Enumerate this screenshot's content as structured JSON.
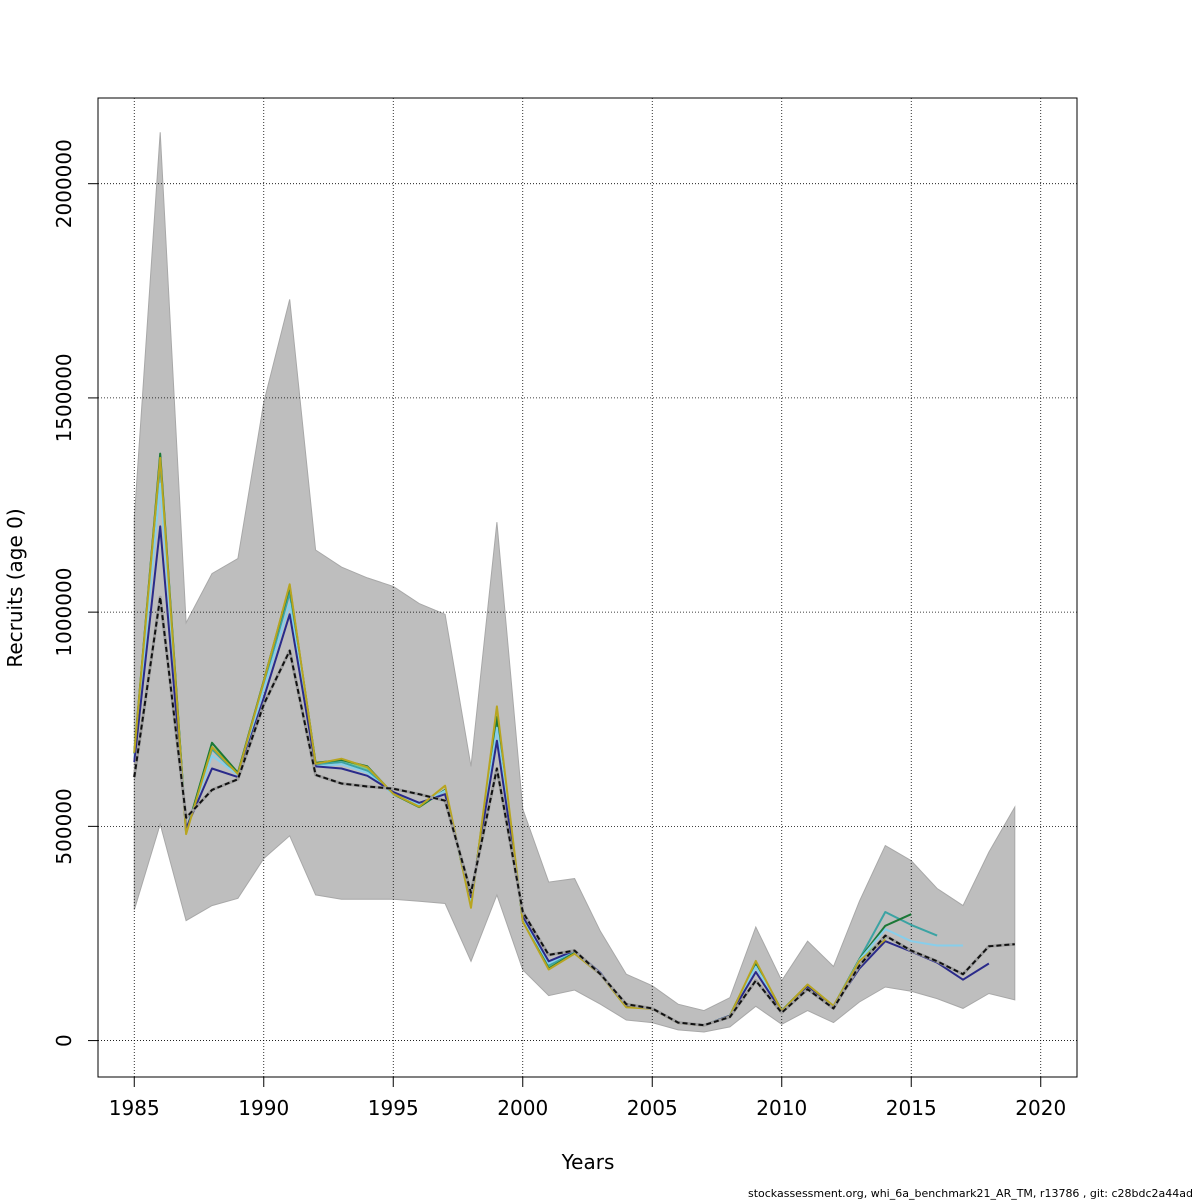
{
  "chart_data": {
    "type": "line",
    "title": "",
    "xlabel": "Years",
    "ylabel": "Recruits (age 0)",
    "xlim": [
      1983.6,
      2021.4
    ],
    "ylim": [
      -85000,
      2200000
    ],
    "xticks": [
      "1985",
      "1990",
      "1995",
      "2000",
      "2005",
      "2010",
      "2015",
      "2020"
    ],
    "yticks": [
      "0",
      "500000",
      "1000000",
      "1500000",
      "2000000"
    ],
    "grid": true,
    "legend": "none",
    "footer": "stockassessment.org, whi_6a_benchmark21_AR_TM, r13786 , git: c28bdc2a44ad",
    "band": {
      "color": "#bebebe",
      "x": [
        1985,
        1986,
        1987,
        1988,
        1989,
        1990,
        1991,
        1992,
        1993,
        1994,
        1995,
        1996,
        1997,
        1998,
        1999,
        2000,
        2001,
        2002,
        2003,
        2004,
        2005,
        2006,
        2007,
        2008,
        2009,
        2010,
        2011,
        2012,
        2013,
        2014,
        2015,
        2016,
        2017,
        2018,
        2019
      ],
      "lower": [
        305000,
        505000,
        280000,
        315000,
        332000,
        425000,
        478000,
        340000,
        330000,
        330000,
        330000,
        325000,
        320000,
        185000,
        340000,
        165000,
        105000,
        118000,
        85000,
        48000,
        42000,
        25000,
        20000,
        32000,
        80000,
        38000,
        70000,
        42000,
        90000,
        125000,
        115000,
        98000,
        75000,
        110000,
        95000
      ],
      "upper": [
        1220000,
        2120000,
        975000,
        1090000,
        1125000,
        1490000,
        1730000,
        1145000,
        1105000,
        1080000,
        1060000,
        1020000,
        995000,
        640000,
        1210000,
        540000,
        370000,
        378000,
        255000,
        155000,
        128000,
        85000,
        70000,
        100000,
        265000,
        140000,
        232000,
        173000,
        325000,
        455000,
        420000,
        355000,
        315000,
        440000,
        545000
      ]
    },
    "series": [
      {
        "color": "#7fc97f",
        "dashed": false,
        "x": [
          1985,
          1986,
          1987,
          1988,
          1989,
          1990,
          1991,
          1992,
          1993,
          1994,
          1995,
          1996,
          1997,
          1998,
          1999,
          2000,
          2001,
          2002,
          2003,
          2004,
          2005,
          2006,
          2007,
          2008,
          2009,
          2010,
          2011,
          2012,
          2013,
          2014
        ],
        "values": [
          675000,
          1365000,
          485000,
          695000,
          620000,
          835000,
          1060000,
          645000,
          655000,
          635000,
          575000,
          545000,
          585000,
          315000,
          765000,
          280000,
          170000,
          205000,
          155000,
          78000,
          75000,
          42000,
          36000,
          58000,
          180000,
          70000,
          130000,
          80000,
          190000,
          240000
        ]
      },
      {
        "color": "#3ba3a3",
        "dashed": false,
        "x": [
          1985,
          1986,
          1987,
          1988,
          1989,
          1990,
          1991,
          1992,
          1993,
          1994,
          1995,
          1996,
          1997,
          1998,
          1999,
          2000,
          2001,
          2002,
          2003,
          2004,
          2005,
          2006,
          2007,
          2008,
          2009,
          2010,
          2011,
          2012,
          2013,
          2014,
          2015,
          2016
        ],
        "values": [
          670000,
          1345000,
          490000,
          680000,
          620000,
          830000,
          1045000,
          645000,
          650000,
          630000,
          575000,
          548000,
          583000,
          320000,
          745000,
          282000,
          175000,
          207000,
          156000,
          79000,
          75000,
          42000,
          36000,
          58000,
          180000,
          70000,
          130000,
          80000,
          190000,
          300000,
          270000,
          245000
        ]
      },
      {
        "color": "#1b7837",
        "dashed": false,
        "x": [
          1985,
          1986,
          1987,
          1988,
          1989,
          1990,
          1991,
          1992,
          1993,
          1994,
          1995,
          1996,
          1997,
          1998,
          1999,
          2000,
          2001,
          2002,
          2003,
          2004,
          2005,
          2006,
          2007,
          2008,
          2009,
          2010,
          2011,
          2012,
          2013,
          2014,
          2015
        ],
        "values": [
          670000,
          1370000,
          485000,
          695000,
          625000,
          840000,
          1060000,
          648000,
          655000,
          640000,
          575000,
          545000,
          585000,
          318000,
          755000,
          280000,
          168000,
          205000,
          156000,
          79000,
          75000,
          42000,
          36000,
          58000,
          182000,
          70000,
          130000,
          80000,
          190000,
          268000,
          295000
        ]
      },
      {
        "color": "#87ceeb",
        "dashed": false,
        "x": [
          1985,
          1986,
          1987,
          1988,
          1989,
          1990,
          1991,
          1992,
          1993,
          1994,
          1995,
          1996,
          1997,
          1998,
          1999,
          2000,
          2001,
          2002,
          2003,
          2004,
          2005,
          2006,
          2007,
          2008,
          2009,
          2010,
          2011,
          2012,
          2013,
          2014,
          2015,
          2016,
          2017
        ],
        "values": [
          660000,
          1300000,
          490000,
          665000,
          620000,
          820000,
          1020000,
          640000,
          645000,
          625000,
          575000,
          550000,
          583000,
          325000,
          730000,
          285000,
          180000,
          210000,
          158000,
          80000,
          75000,
          42000,
          36000,
          58000,
          172000,
          70000,
          128000,
          80000,
          188000,
          260000,
          232000,
          222000,
          222000
        ]
      },
      {
        "color": "#2a2a8a",
        "dashed": false,
        "x": [
          1985,
          1986,
          1987,
          1988,
          1989,
          1990,
          1991,
          1992,
          1993,
          1994,
          1995,
          1996,
          1997,
          1998,
          1999,
          2000,
          2001,
          2002,
          2003,
          2004,
          2005,
          2006,
          2007,
          2008,
          2009,
          2010,
          2011,
          2012,
          2013,
          2014,
          2015,
          2016,
          2017,
          2018
        ],
        "values": [
          650000,
          1200000,
          495000,
          635000,
          615000,
          800000,
          995000,
          640000,
          635000,
          618000,
          580000,
          555000,
          575000,
          335000,
          700000,
          290000,
          185000,
          210000,
          158000,
          80000,
          75000,
          42000,
          36000,
          58000,
          160000,
          68000,
          125000,
          78000,
          168000,
          232000,
          208000,
          182000,
          142000,
          180000
        ]
      },
      {
        "color": "#b8a520",
        "dashed": false,
        "x": [
          1985,
          1986,
          1987,
          1988,
          1989,
          1990,
          1991,
          1992,
          1993,
          1994,
          1995,
          1996,
          1997,
          1998,
          1999,
          2000,
          2001,
          2002,
          2003,
          2004,
          2005,
          2006,
          2007,
          2008,
          2009,
          2010,
          2011,
          2012,
          2013,
          2014
        ],
        "values": [
          672000,
          1360000,
          482000,
          685000,
          622000,
          838000,
          1065000,
          646000,
          658000,
          638000,
          576000,
          546000,
          595000,
          310000,
          780000,
          278000,
          166000,
          203000,
          154000,
          78000,
          74000,
          41000,
          35000,
          57000,
          186000,
          69000,
          131000,
          81000,
          186000,
          236000
        ]
      },
      {
        "color": "#111111",
        "dashed": true,
        "x": [
          1985,
          1986,
          1987,
          1988,
          1989,
          1990,
          1991,
          1992,
          1993,
          1994,
          1995,
          1996,
          1997,
          1998,
          1999,
          2000,
          2001,
          2002,
          2003,
          2004,
          2005,
          2006,
          2007,
          2008,
          2009,
          2010,
          2011,
          2012,
          2013,
          2014,
          2015,
          2016,
          2017,
          2018,
          2019
        ],
        "values": [
          615000,
          1035000,
          520000,
          585000,
          610000,
          785000,
          910000,
          620000,
          600000,
          593000,
          588000,
          575000,
          560000,
          345000,
          635000,
          300000,
          200000,
          210000,
          155000,
          85000,
          75000,
          42000,
          36000,
          55000,
          140000,
          65000,
          120000,
          75000,
          175000,
          245000,
          210000,
          185000,
          155000,
          220000,
          225000
        ]
      }
    ]
  }
}
